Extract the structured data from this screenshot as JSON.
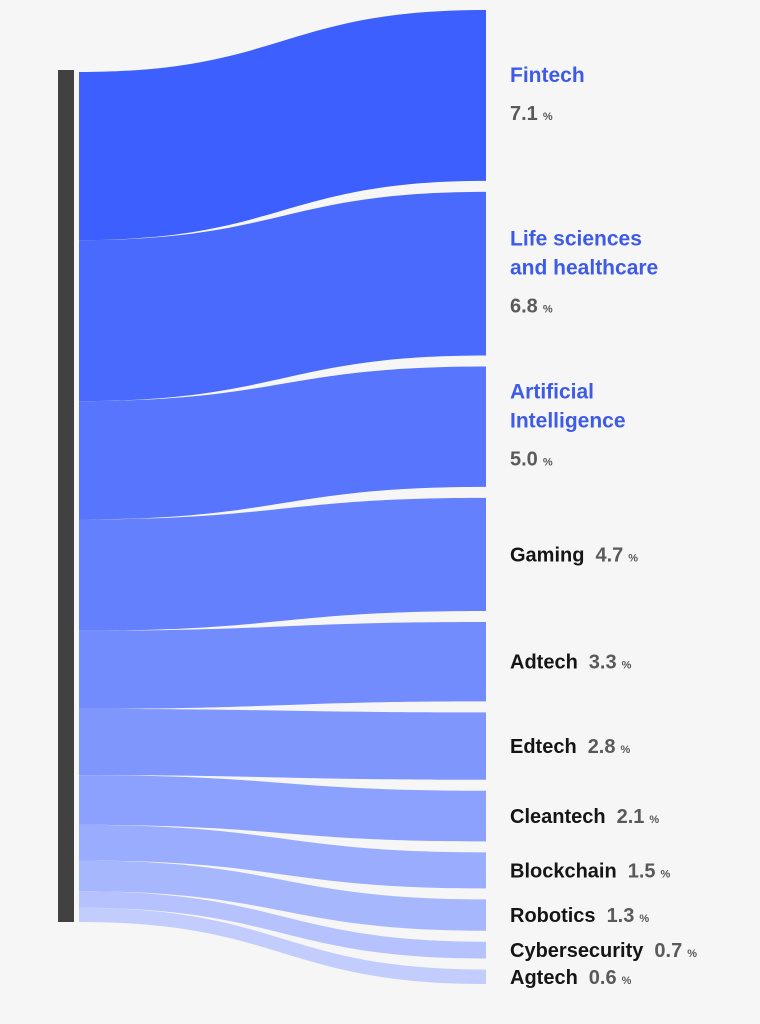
{
  "chart_data": {
    "type": "sankey",
    "title": "",
    "unit": "%",
    "categories": [
      "Fintech",
      "Life sciences and healthcare",
      "Artificial Intelligence",
      "Gaming",
      "Adtech",
      "Edtech",
      "Cleantech",
      "Blockchain",
      "Robotics",
      "Cybersecurity",
      "Agtech"
    ],
    "label_lines": [
      [
        "Fintech"
      ],
      [
        "Life sciences",
        "and healthcare"
      ],
      [
        "Artificial",
        "Intelligence"
      ],
      [
        "Gaming"
      ],
      [
        "Adtech"
      ],
      [
        "Edtech"
      ],
      [
        "Cleantech"
      ],
      [
        "Blockchain"
      ],
      [
        "Robotics"
      ],
      [
        "Cybersecurity"
      ],
      [
        "Agtech"
      ]
    ],
    "values": [
      7.1,
      6.8,
      5.0,
      4.7,
      3.3,
      2.8,
      2.1,
      1.5,
      1.3,
      0.7,
      0.6
    ],
    "value_labels": [
      "7.1",
      "6.8",
      "5.0",
      "4.7",
      "3.3",
      "2.8",
      "2.1",
      "1.5",
      "1.3",
      "0.7",
      "0.6"
    ],
    "highlighted": [
      "Fintech",
      "Life sciences and healthcare",
      "Artificial Intelligence"
    ],
    "colors": {
      "flow_start": "#3c5ffd",
      "flow_end": "#c2cdfd",
      "highlight_text": "#3d5be6",
      "label_text": "#151515",
      "value_text": "#5a5a5a",
      "source_bar": "#414141",
      "background": "#f6f6f7"
    }
  }
}
